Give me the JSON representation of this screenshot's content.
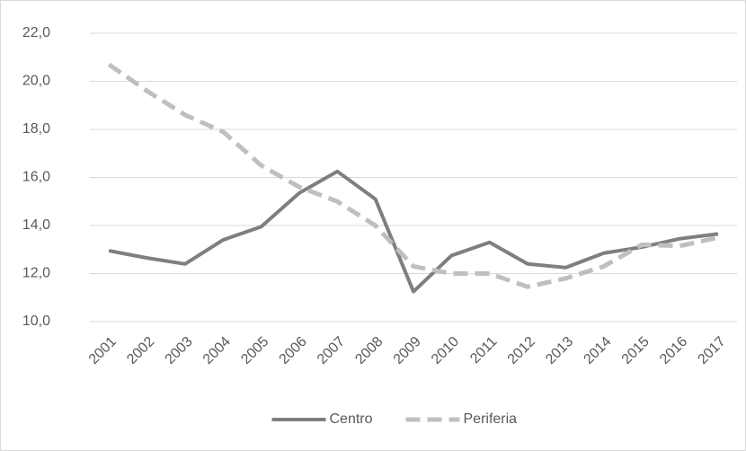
{
  "chart_data": {
    "type": "line",
    "categories": [
      "2001",
      "2002",
      "2003",
      "2004",
      "2005",
      "2006",
      "2007",
      "2008",
      "2009",
      "2010",
      "2011",
      "2012",
      "2013",
      "2014",
      "2015",
      "2016",
      "2017"
    ],
    "series": [
      {
        "name": "Centro",
        "color": "#7f7f7f",
        "dashed": false,
        "values": [
          12.95,
          12.65,
          12.4,
          13.4,
          13.95,
          15.35,
          16.25,
          15.1,
          11.25,
          12.75,
          13.3,
          12.4,
          12.25,
          12.85,
          13.1,
          13.45,
          13.65
        ]
      },
      {
        "name": "Periferia",
        "color": "#bfbfbf",
        "dashed": true,
        "values": [
          20.7,
          19.6,
          18.6,
          17.9,
          16.5,
          15.6,
          15.0,
          14.0,
          12.3,
          12.0,
          12.0,
          11.45,
          11.8,
          12.3,
          13.2,
          13.15,
          13.5
        ]
      }
    ],
    "ylim": [
      10,
      22
    ],
    "yticks": [
      {
        "value": 10,
        "label": "10,0"
      },
      {
        "value": 12,
        "label": "12,0"
      },
      {
        "value": 14,
        "label": "14,0"
      },
      {
        "value": 16,
        "label": "16,0"
      },
      {
        "value": 18,
        "label": "18,0"
      },
      {
        "value": 20,
        "label": "20,0"
      },
      {
        "value": 22,
        "label": "22,0"
      }
    ],
    "grid": true,
    "legend": "bottom"
  }
}
